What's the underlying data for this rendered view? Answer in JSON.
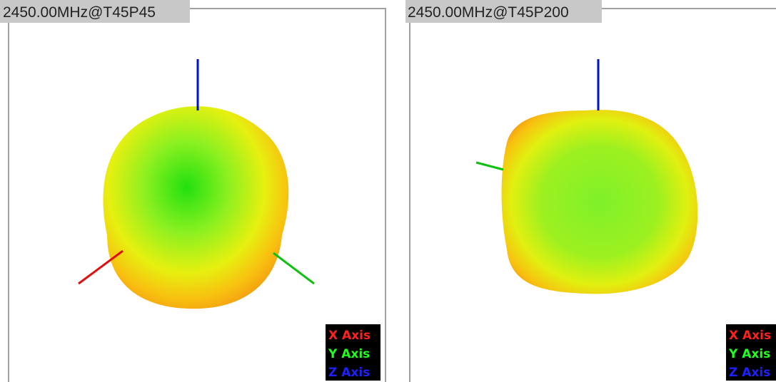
{
  "panels": [
    {
      "title": "2450.00MHz@T45P45",
      "legend": [
        "X Axis",
        "Y Axis",
        "Z Axis"
      ]
    },
    {
      "title": "2450.00MHz@T45P200",
      "legend": [
        "X Axis",
        "Y Axis",
        "Z Axis"
      ]
    }
  ]
}
